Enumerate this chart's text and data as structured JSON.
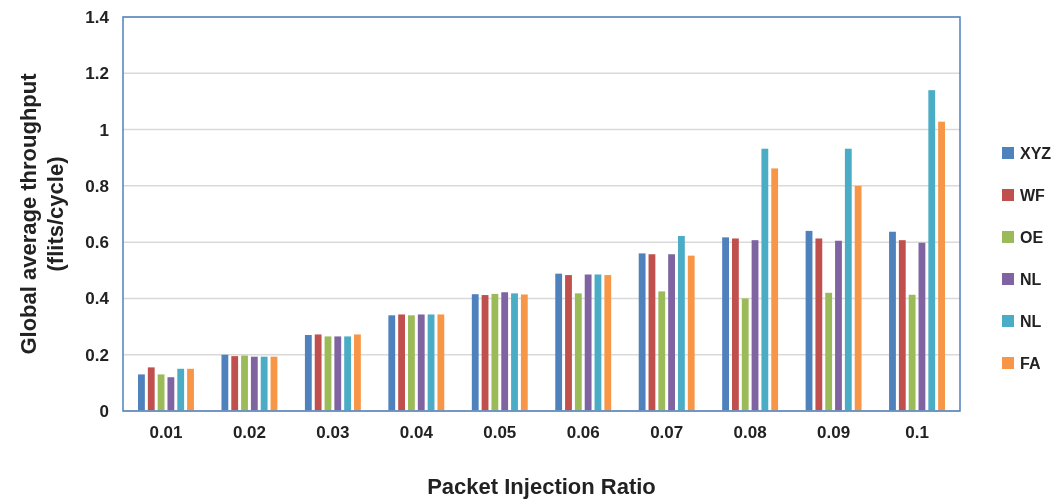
{
  "chart_data": {
    "type": "bar",
    "xlabel": "Packet Injection Ratio",
    "ylabel": "Global average throughput (flits/cycle)",
    "categories": [
      "0.01",
      "0.02",
      "0.03",
      "0.04",
      "0.05",
      "0.06",
      "0.07",
      "0.08",
      "0.09",
      "0.1"
    ],
    "series": [
      {
        "name": "XYZ",
        "color": "#4f81bd",
        "values": [
          0.13,
          0.2,
          0.27,
          0.34,
          0.415,
          0.488,
          0.56,
          0.617,
          0.64,
          0.637
        ]
      },
      {
        "name": "WF",
        "color": "#c0504d",
        "values": [
          0.155,
          0.195,
          0.272,
          0.343,
          0.412,
          0.483,
          0.557,
          0.613,
          0.613,
          0.607
        ]
      },
      {
        "name": "OE",
        "color": "#9bbb59",
        "values": [
          0.13,
          0.197,
          0.265,
          0.34,
          0.416,
          0.418,
          0.425,
          0.4,
          0.42,
          0.413
        ]
      },
      {
        "name": "NL",
        "color": "#8064a2",
        "values": [
          0.12,
          0.193,
          0.265,
          0.343,
          0.422,
          0.485,
          0.557,
          0.607,
          0.605,
          0.598
        ]
      },
      {
        "name": "NL",
        "color": "#4bacc6",
        "values": [
          0.15,
          0.193,
          0.265,
          0.343,
          0.418,
          0.485,
          0.622,
          0.932,
          0.932,
          1.14
        ]
      },
      {
        "name": "FA",
        "color": "#f79646",
        "values": [
          0.15,
          0.193,
          0.272,
          0.343,
          0.414,
          0.483,
          0.552,
          0.862,
          0.8,
          1.028
        ]
      }
    ],
    "ylim": [
      0,
      1.4
    ],
    "yticks": [
      0,
      0.2,
      0.4,
      0.6,
      0.8,
      1,
      1.2,
      1.4
    ],
    "grid": "y",
    "legend": "right"
  }
}
